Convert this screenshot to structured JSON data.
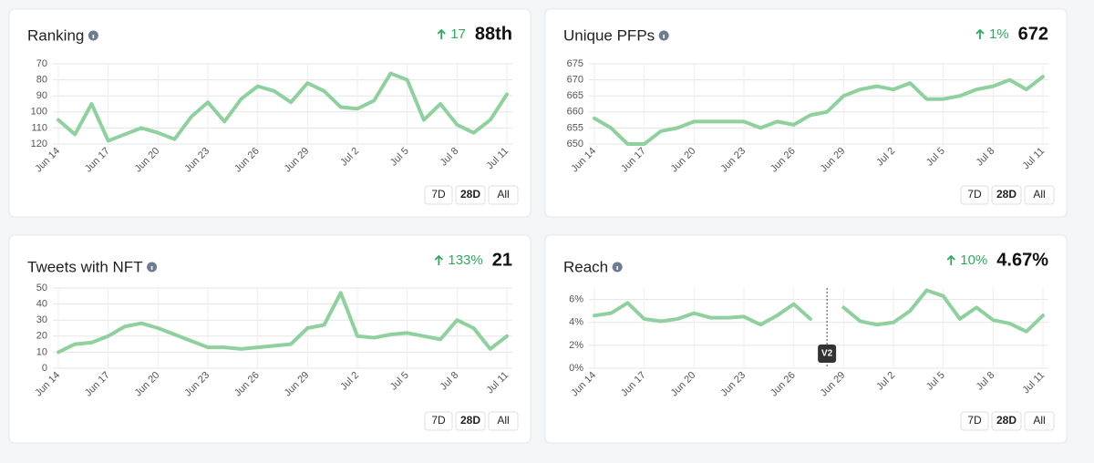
{
  "chart_data": [
    {
      "type": "line",
      "title": "Ranking",
      "change": "17",
      "value": "88th",
      "categories": [
        "Jun 14",
        null,
        null,
        "Jun 17",
        null,
        null,
        "Jun 20",
        null,
        null,
        "Jun 23",
        null,
        null,
        "Jun 26",
        null,
        null,
        "Jun 29",
        null,
        null,
        "Jul 2",
        null,
        null,
        "Jul 5",
        null,
        null,
        "Jul 8",
        null,
        null,
        "Jul 11"
      ],
      "series": [
        {
          "name": "Ranking",
          "color": "#8fd19e",
          "values": [
            105,
            114,
            95,
            118,
            114,
            110,
            113,
            117,
            103,
            94,
            106,
            92,
            84,
            87,
            94,
            82,
            87,
            97,
            98,
            93,
            76,
            80,
            105,
            95,
            108,
            113,
            105,
            89
          ]
        }
      ],
      "ylim": [
        120,
        70
      ],
      "yticks": [
        70,
        80,
        90,
        100,
        110,
        120
      ],
      "grid": true
    },
    {
      "type": "line",
      "title": "Unique PFPs",
      "change": "1%",
      "value": "672",
      "categories": [
        "Jun 14",
        null,
        null,
        "Jun 17",
        null,
        null,
        "Jun 20",
        null,
        null,
        "Jun 23",
        null,
        null,
        "Jun 26",
        null,
        null,
        "Jun 29",
        null,
        null,
        "Jul 2",
        null,
        null,
        "Jul 5",
        null,
        null,
        "Jul 8",
        null,
        null,
        "Jul 11"
      ],
      "series": [
        {
          "name": "Unique PFPs",
          "color": "#8fd19e",
          "values": [
            658,
            655,
            650,
            650,
            654,
            655,
            657,
            657,
            657,
            657,
            655,
            657,
            656,
            659,
            660,
            665,
            667,
            668,
            667,
            669,
            664,
            664,
            665,
            667,
            668,
            670,
            667,
            671
          ]
        }
      ],
      "ylim": [
        650,
        675
      ],
      "yticks": [
        650,
        655,
        660,
        665,
        670,
        675
      ],
      "grid": true
    },
    {
      "type": "line",
      "title": "Tweets with NFT",
      "change": "133%",
      "value": "21",
      "categories": [
        "Jun 14",
        null,
        null,
        "Jun 17",
        null,
        null,
        "Jun 20",
        null,
        null,
        "Jun 23",
        null,
        null,
        "Jun 26",
        null,
        null,
        "Jun 29",
        null,
        null,
        "Jul 2",
        null,
        null,
        "Jul 5",
        null,
        null,
        "Jul 8",
        null,
        null,
        "Jul 11"
      ],
      "series": [
        {
          "name": "Tweets with NFT",
          "color": "#8fd19e",
          "values": [
            10,
            15,
            16,
            20,
            26,
            28,
            25,
            21,
            17,
            13,
            13,
            12,
            13,
            14,
            15,
            25,
            27,
            47,
            20,
            19,
            21,
            22,
            20,
            18,
            30,
            25,
            12,
            20
          ]
        }
      ],
      "ylim": [
        0,
        50
      ],
      "yticks": [
        0,
        10,
        20,
        30,
        40,
        50
      ],
      "grid": true
    },
    {
      "type": "line",
      "title": "Reach",
      "change": "10%",
      "value": "4.67%",
      "categories": [
        "Jun 14",
        null,
        null,
        "Jun 17",
        null,
        null,
        "Jun 20",
        null,
        null,
        "Jun 23",
        null,
        null,
        "Jun 26",
        null,
        null,
        "Jun 29",
        null,
        null,
        "Jul 2",
        null,
        null,
        "Jul 5",
        null,
        null,
        "Jul 8",
        null,
        null,
        "Jul 11"
      ],
      "series": [
        {
          "name": "Reach",
          "color": "#8fd19e",
          "values": [
            4.6,
            4.8,
            5.7,
            4.3,
            4.1,
            4.3,
            4.8,
            4.4,
            4.4,
            4.5,
            3.8,
            4.6,
            5.6,
            4.3,
            null,
            5.3,
            4.1,
            3.8,
            4.0,
            5.0,
            6.8,
            6.3,
            4.3,
            5.3,
            4.2,
            3.9,
            3.2,
            4.6
          ]
        }
      ],
      "ylim": [
        0,
        7
      ],
      "yticks": [
        {
          "value": 0,
          "label": "0%"
        },
        {
          "value": 2,
          "label": "2%"
        },
        {
          "value": 4,
          "label": "4%"
        },
        {
          "value": 6,
          "label": "6%"
        }
      ],
      "grid": true,
      "annotations": [
        {
          "label": "V2",
          "at": 14
        }
      ]
    }
  ],
  "ranges": [
    "7D",
    "28D",
    "All"
  ],
  "selected": "28D"
}
